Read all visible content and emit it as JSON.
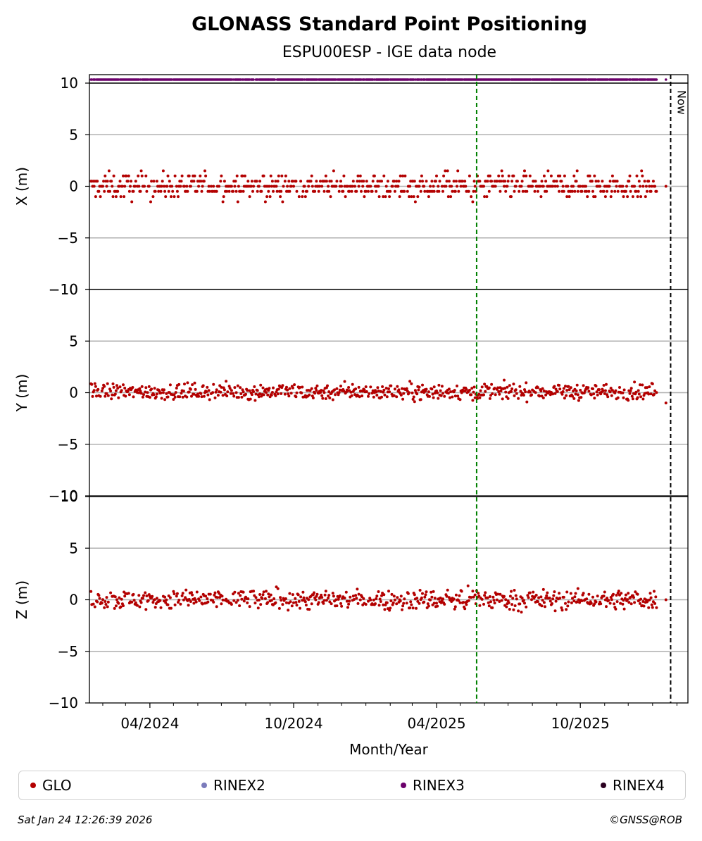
{
  "colors": {
    "glo": "#b30000",
    "rinex2": "#7b7bbb",
    "rinex3": "#6b006b",
    "rinex4": "#2a0020",
    "marker_line": "#008000",
    "grid": "#b0b0b0"
  },
  "chart_data": {
    "type": "scatter",
    "title": "GLONASS Standard Point Positioning",
    "subtitle": "ESPU00ESP - IGE data node",
    "xlabel": "Month/Year",
    "x_ticks": [
      "04/2024",
      "10/2024",
      "04/2025",
      "10/2025"
    ],
    "x_tick_dates": [
      "2024-04-01",
      "2024-10-01",
      "2025-04-01",
      "2025-10-01"
    ],
    "x_range": [
      "2024-01-15",
      "2026-02-15"
    ],
    "marker_date": "2025-05-22",
    "now_date": "2026-01-24",
    "now_label": "Now",
    "grid": true,
    "legend_position": "bottom",
    "panels": [
      {
        "ylabel": "X (m)",
        "ylim": [
          -10,
          10
        ],
        "yticks": [
          "−10",
          "−5",
          "0",
          "5",
          "10"
        ],
        "ytick_values": [
          -10,
          -5,
          0,
          5,
          10
        ],
        "dispersion": 1.0,
        "step": 0.5,
        "ymin": -4.5,
        "ymax": 3.0
      },
      {
        "ylabel": "Y (m)",
        "ylim": [
          -10,
          10
        ],
        "yticks": [
          "−10",
          "−5",
          "0",
          "5",
          "10"
        ],
        "ytick_values": [
          -10,
          -5,
          0,
          5,
          10
        ],
        "dispersion": 0.65,
        "step": 0,
        "ymin": -1.8,
        "ymax": 3.1
      },
      {
        "ylabel": "Z (m)",
        "ylim": [
          -10,
          10
        ],
        "yticks": [
          "−10",
          "−5",
          "0",
          "5",
          "10"
        ],
        "ytick_values": [
          -10,
          -5,
          0,
          5,
          10
        ],
        "dispersion": 0.8,
        "step": 0,
        "ymin": -3.2,
        "ymax": 2.8
      }
    ],
    "series": [
      {
        "name": "GLO",
        "color": "#b30000"
      },
      {
        "name": "RINEX2",
        "color": "#7b7bbb"
      },
      {
        "name": "RINEX3",
        "color": "#6b006b"
      },
      {
        "name": "RINEX4",
        "color": "#2a0020"
      }
    ]
  },
  "legend": {
    "items": [
      "GLO",
      "RINEX2",
      "RINEX3",
      "RINEX4"
    ]
  },
  "footer": {
    "timestamp": "Sat Jan 24 12:26:39 2026",
    "copyright": "©GNSS@ROB"
  }
}
